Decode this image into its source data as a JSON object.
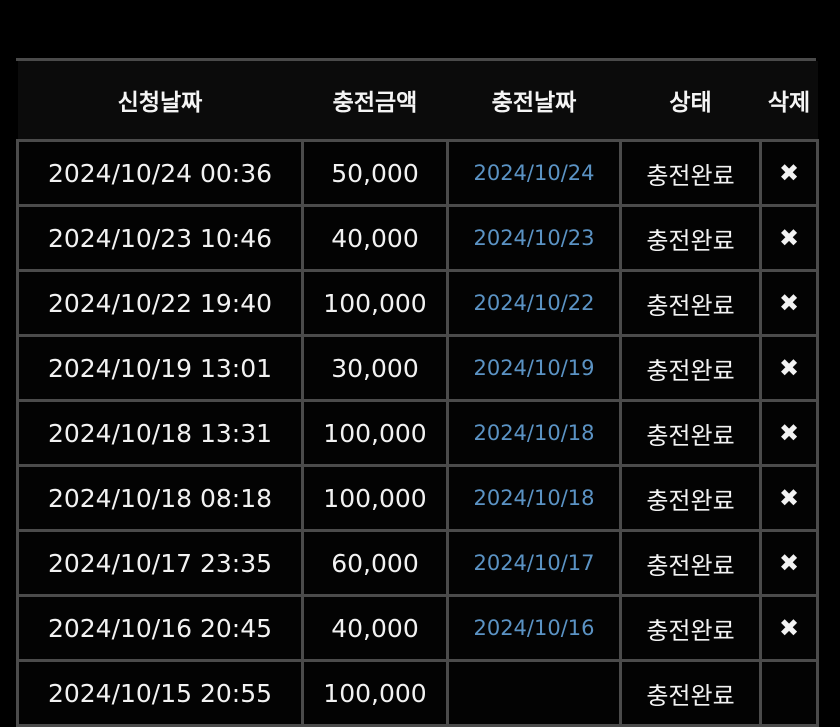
{
  "table": {
    "headers": [
      "신청날짜",
      "충전금액",
      "충전날짜",
      "상태",
      "삭제"
    ],
    "rows": [
      {
        "requested": "2024/10/24 00:36",
        "amount": "50,000",
        "charged": "2024/10/24",
        "status": "충전완료",
        "delete": "✖"
      },
      {
        "requested": "2024/10/23 10:46",
        "amount": "40,000",
        "charged": "2024/10/23",
        "status": "충전완료",
        "delete": "✖"
      },
      {
        "requested": "2024/10/22 19:40",
        "amount": "100,000",
        "charged": "2024/10/22",
        "status": "충전완료",
        "delete": "✖"
      },
      {
        "requested": "2024/10/19 13:01",
        "amount": "30,000",
        "charged": "2024/10/19",
        "status": "충전완료",
        "delete": "✖"
      },
      {
        "requested": "2024/10/18 13:31",
        "amount": "100,000",
        "charged": "2024/10/18",
        "status": "충전완료",
        "delete": "✖"
      },
      {
        "requested": "2024/10/18 08:18",
        "amount": "100,000",
        "charged": "2024/10/18",
        "status": "충전완료",
        "delete": "✖"
      },
      {
        "requested": "2024/10/17 23:35",
        "amount": "60,000",
        "charged": "2024/10/17",
        "status": "충전완료",
        "delete": "✖"
      },
      {
        "requested": "2024/10/16 20:45",
        "amount": "40,000",
        "charged": "2024/10/16",
        "status": "충전완료",
        "delete": "✖"
      },
      {
        "requested": "2024/10/15 20:55",
        "amount": "100,000",
        "charged": "",
        "status": "충전완료",
        "delete": ""
      }
    ]
  },
  "colors": {
    "background": "#000000",
    "border": "#4b4b4b",
    "charged_date": "#5b93c4",
    "text": "#f2f2f2"
  },
  "icons": {
    "delete": "close-x-icon"
  }
}
